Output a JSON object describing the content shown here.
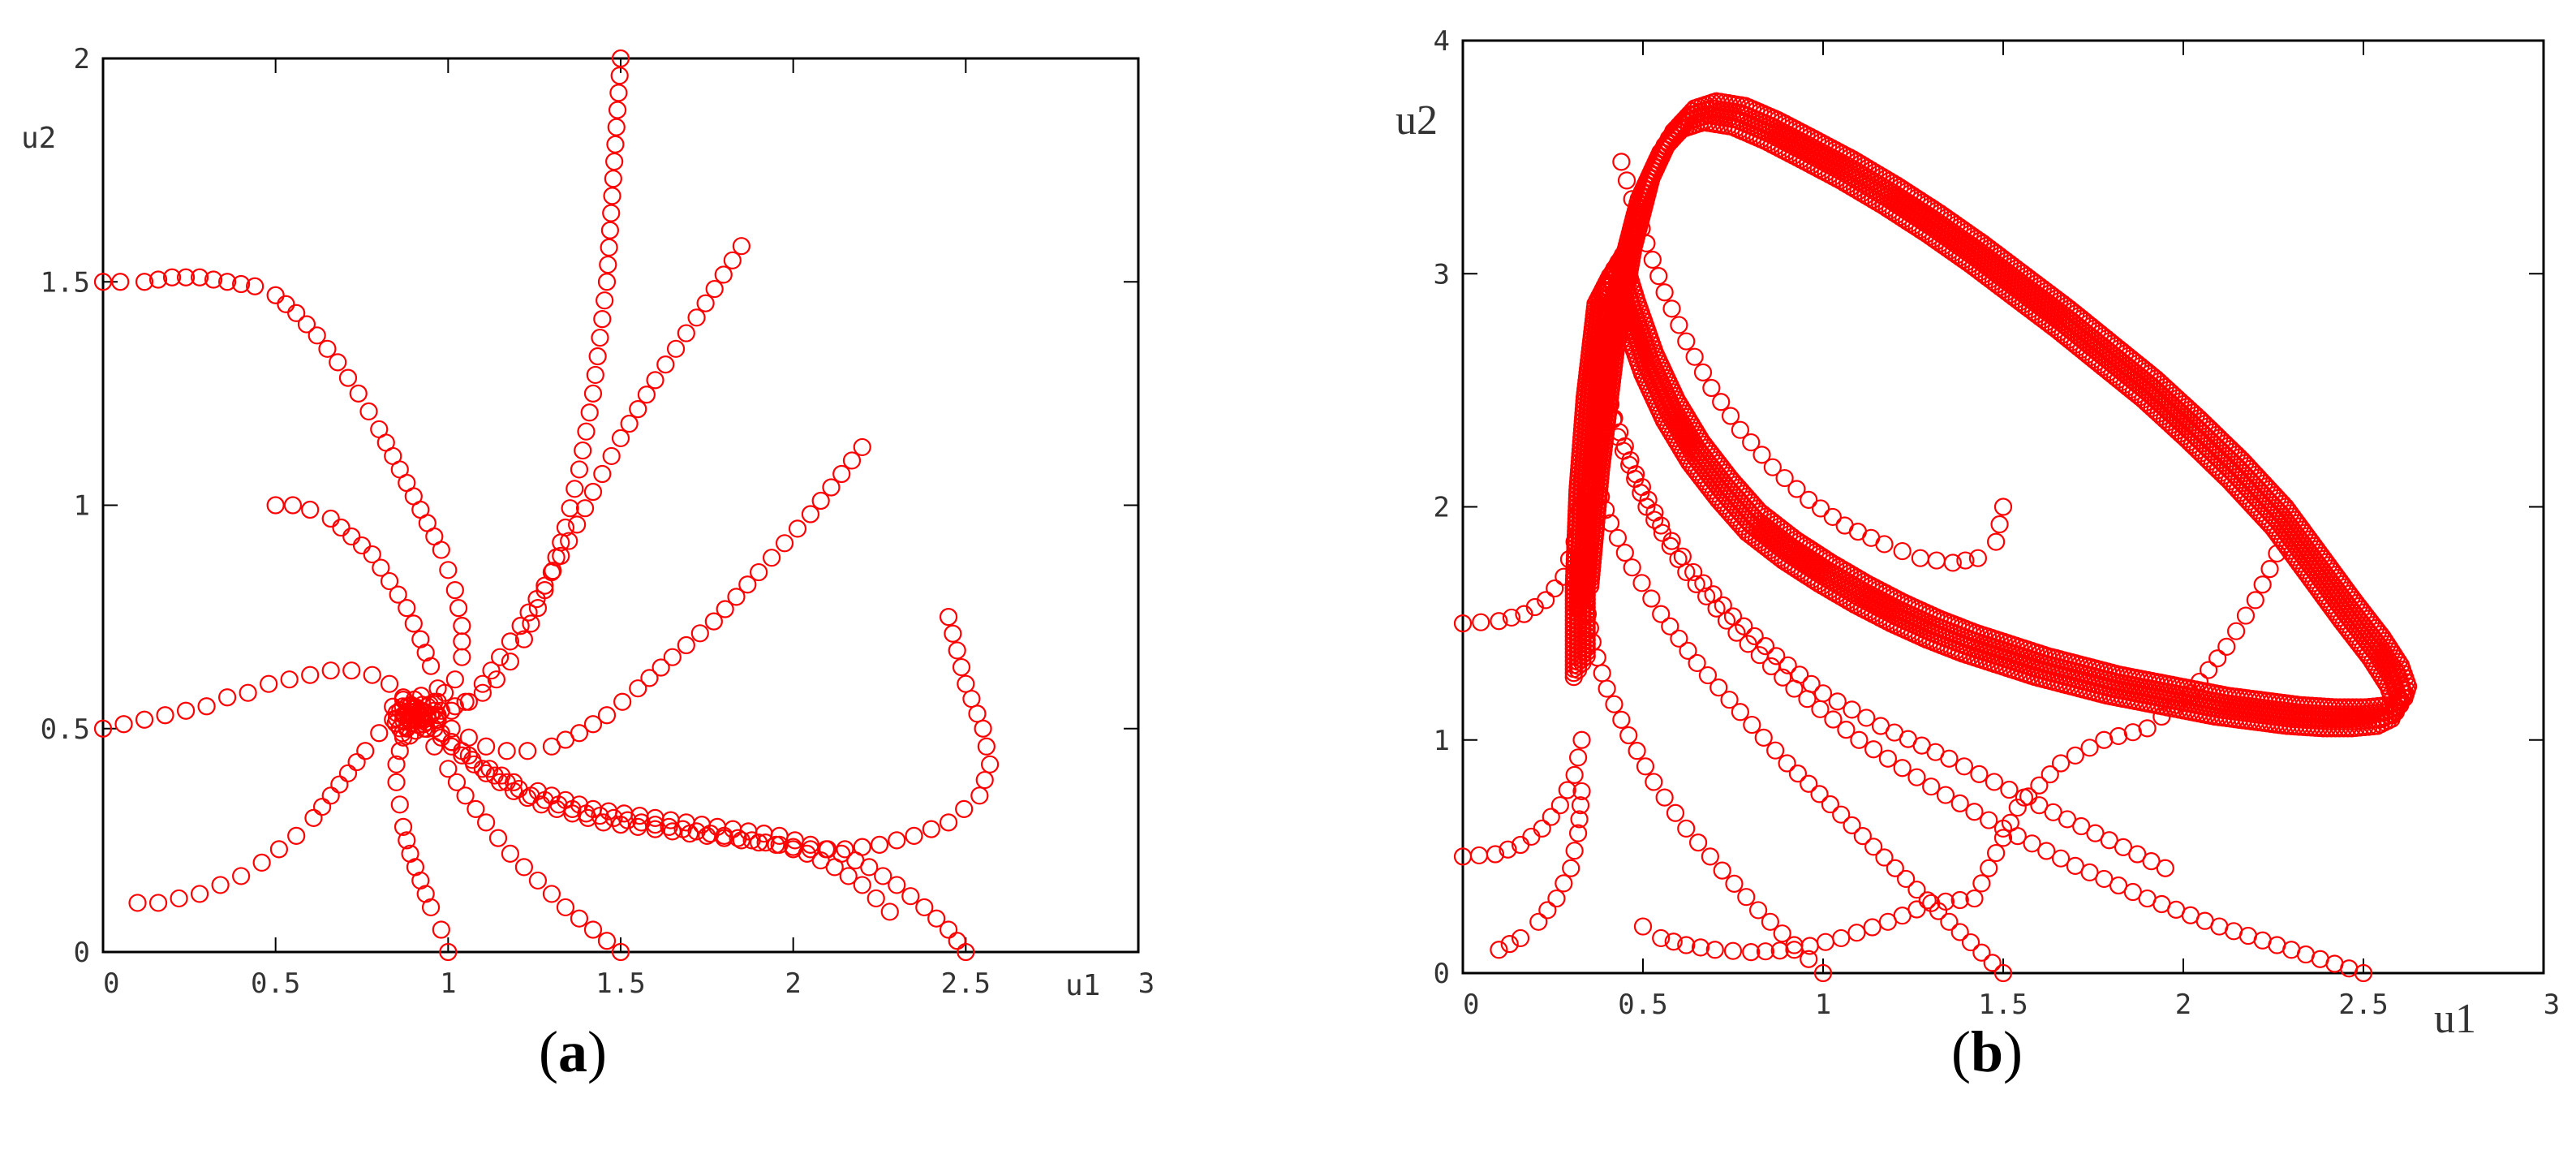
{
  "panels": {
    "a": {
      "caption_label": "a",
      "xlabel": "u1",
      "ylabel": "u2",
      "xlim": [
        0,
        3
      ],
      "ylim": [
        0,
        2
      ],
      "xticks": [
        "0",
        "0.5",
        "1",
        "1.5",
        "2",
        "2.5",
        "3"
      ],
      "yticks": [
        "0",
        "0.5",
        "1",
        "1.5",
        "2"
      ]
    },
    "b": {
      "caption_label": "b",
      "xlabel": "u1",
      "ylabel": "u2",
      "xlim": [
        0,
        3
      ],
      "ylim": [
        0,
        4
      ],
      "xticks": [
        "0",
        "0.5",
        "1",
        "1.5",
        "2",
        "2.5",
        "3"
      ],
      "yticks": [
        "0",
        "1",
        "2",
        "3",
        "4"
      ]
    }
  },
  "chart_data": [
    {
      "type": "scatter",
      "panel": "a",
      "xlabel": "u1",
      "ylabel": "u2",
      "xlim": [
        0,
        3
      ],
      "ylim": [
        0,
        2
      ],
      "marker": "open-circle",
      "color": "#ff0000",
      "equilibrium": [
        0.9,
        0.53
      ],
      "series": [
        {
          "x": [
            0,
            0.05,
            0.12,
            0.2,
            0.28,
            0.36,
            0.44,
            0.5,
            0.56,
            0.62,
            0.68,
            0.74,
            0.8,
            0.86,
            0.92,
            0.98,
            1.02,
            1.04,
            1.04,
            1.02,
            0.99,
            0.96,
            0.94,
            0.92,
            0.91,
            0.9
          ],
          "y": [
            1.5,
            1.5,
            1.5,
            1.51,
            1.51,
            1.5,
            1.49,
            1.47,
            1.43,
            1.38,
            1.32,
            1.25,
            1.17,
            1.08,
            0.99,
            0.9,
            0.81,
            0.73,
            0.66,
            0.61,
            0.58,
            0.56,
            0.55,
            0.54,
            0.53,
            0.53
          ]
        },
        {
          "x": [
            0.5,
            0.55,
            0.6,
            0.66,
            0.72,
            0.78,
            0.83,
            0.88,
            0.92,
            0.95,
            0.97,
            0.97,
            0.96,
            0.94,
            0.92,
            0.91,
            0.9
          ],
          "y": [
            1,
            1,
            0.99,
            0.97,
            0.93,
            0.89,
            0.83,
            0.77,
            0.7,
            0.64,
            0.59,
            0.56,
            0.54,
            0.53,
            0.53,
            0.53,
            0.53
          ]
        },
        {
          "x": [
            0,
            0.06,
            0.12,
            0.18,
            0.24,
            0.3,
            0.36,
            0.42,
            0.48,
            0.54,
            0.6,
            0.66,
            0.72,
            0.78,
            0.83,
            0.87,
            0.89,
            0.9
          ],
          "y": [
            0.5,
            0.51,
            0.52,
            0.53,
            0.54,
            0.55,
            0.57,
            0.58,
            0.6,
            0.61,
            0.62,
            0.63,
            0.63,
            0.62,
            0.6,
            0.57,
            0.55,
            0.53
          ]
        },
        {
          "x": [
            0.1,
            0.16,
            0.22,
            0.28,
            0.34,
            0.4,
            0.46,
            0.51,
            0.56,
            0.61,
            0.66,
            0.71,
            0.76,
            0.8,
            0.84,
            0.87,
            0.89,
            0.9
          ],
          "y": [
            0.11,
            0.11,
            0.12,
            0.13,
            0.15,
            0.17,
            0.2,
            0.23,
            0.26,
            0.3,
            0.35,
            0.4,
            0.45,
            0.49,
            0.52,
            0.53,
            0.53,
            0.53
          ]
        },
        {
          "x": [
            1,
            0.98,
            0.95,
            0.92,
            0.89,
            0.87,
            0.86,
            0.85,
            0.85,
            0.86,
            0.87,
            0.88,
            0.89,
            0.9
          ],
          "y": [
            0,
            0.05,
            0.1,
            0.16,
            0.22,
            0.28,
            0.33,
            0.38,
            0.42,
            0.45,
            0.48,
            0.5,
            0.52,
            0.53
          ]
        },
        {
          "x": [
            1.5,
            1.42,
            1.34,
            1.26,
            1.18,
            1.11,
            1.05,
            1,
            0.96,
            0.93,
            0.91,
            0.9
          ],
          "y": [
            0,
            0.05,
            0.1,
            0.16,
            0.22,
            0.29,
            0.35,
            0.41,
            0.46,
            0.5,
            0.52,
            0.53
          ]
        },
        {
          "x": [
            1.85,
            1.72,
            1.6,
            1.5,
            1.42,
            1.35,
            1.28,
            1.21,
            1.15,
            1.1,
            1.05,
            1.01,
            0.97,
            0.94,
            0.92,
            0.9
          ],
          "y": [
            1.58,
            1.42,
            1.28,
            1.15,
            1.03,
            0.92,
            0.82,
            0.73,
            0.66,
            0.6,
            0.56,
            0.54,
            0.53,
            0.53,
            0.53,
            0.53
          ]
        },
        {
          "x": [
            1.5,
            1.46,
            1.42,
            1.38,
            1.34,
            1.3,
            1.26,
            1.22,
            1.18,
            1.14,
            1.1,
            1.06,
            1.02,
            0.98,
            0.95,
            0.92,
            0.9
          ],
          "y": [
            2,
            1.5,
            1.25,
            1.08,
            0.95,
            0.85,
            0.77,
            0.7,
            0.65,
            0.61,
            0.58,
            0.56,
            0.55,
            0.54,
            0.53,
            0.53,
            0.53
          ]
        },
        {
          "x": [
            2.2,
            2.05,
            1.9,
            1.77,
            1.65,
            1.55,
            1.46,
            1.38,
            1.3,
            1.23,
            1.17,
            1.11,
            1.06,
            1.01,
            0.97,
            0.93,
            0.9
          ],
          "y": [
            1.13,
            0.98,
            0.85,
            0.74,
            0.66,
            0.59,
            0.53,
            0.49,
            0.46,
            0.45,
            0.45,
            0.46,
            0.48,
            0.5,
            0.52,
            0.53,
            0.53
          ]
        },
        {
          "x": [
            2.5,
            2.45,
            2.38,
            2.3,
            2.22,
            2.14,
            2.05,
            1.96,
            1.87,
            1.78,
            1.69,
            1.6,
            1.51,
            1.42,
            1.34,
            1.26,
            1.19,
            1.12,
            1.06,
            1.01,
            0.96,
            0.92,
            0.9
          ],
          "y": [
            0,
            0.05,
            0.1,
            0.15,
            0.19,
            0.22,
            0.24,
            0.26,
            0.27,
            0.28,
            0.29,
            0.3,
            0.31,
            0.32,
            0.34,
            0.36,
            0.38,
            0.41,
            0.44,
            0.47,
            0.5,
            0.52,
            0.53
          ]
        },
        {
          "x": [
            2.45,
            2.5,
            2.55,
            2.57,
            2.54,
            2.45,
            2.35,
            2.25,
            2.15,
            2.05,
            1.95,
            1.85,
            1.75,
            1.65,
            1.55,
            1.45,
            1.36,
            1.27,
            1.19,
            1.11,
            1.04,
            0.98,
            0.93,
            0.9
          ],
          "y": [
            0.75,
            0.6,
            0.5,
            0.42,
            0.35,
            0.29,
            0.26,
            0.24,
            0.23,
            0.23,
            0.24,
            0.25,
            0.26,
            0.27,
            0.28,
            0.29,
            0.31,
            0.33,
            0.36,
            0.4,
            0.44,
            0.48,
            0.51,
            0.53
          ]
        },
        {
          "x": [
            2.28,
            2.2,
            2.12,
            2.04,
            1.96,
            1.88,
            1.8,
            1.72,
            1.64,
            1.56,
            1.48,
            1.4,
            1.32,
            1.24,
            1.17,
            1.1,
            1.04,
            0.98,
            0.93,
            0.9
          ],
          "y": [
            0.09,
            0.15,
            0.19,
            0.22,
            0.24,
            0.25,
            0.26,
            0.27,
            0.28,
            0.29,
            0.3,
            0.31,
            0.33,
            0.35,
            0.38,
            0.41,
            0.45,
            0.49,
            0.52,
            0.53
          ]
        }
      ]
    },
    {
      "type": "scatter",
      "panel": "b",
      "xlabel": "u1",
      "ylabel": "u2",
      "xlim": [
        0,
        3
      ],
      "ylim": [
        0,
        4
      ],
      "marker": "open-circle",
      "color": "#ff0000",
      "limit_cycle": {
        "x": [
          0.33,
          0.36,
          0.4,
          0.45,
          0.5,
          0.56,
          0.62,
          0.68,
          0.76,
          0.85,
          0.95,
          1.06,
          1.18,
          1.3,
          1.42,
          1.54,
          1.66,
          1.78,
          1.9,
          2.02,
          2.14,
          2.26,
          2.36,
          2.45,
          2.53,
          2.58,
          2.6,
          2.59,
          2.55,
          2.48,
          2.4,
          2.3,
          2.2,
          2.1,
          2,
          1.9,
          1.8,
          1.7,
          1.6,
          1.5,
          1.4,
          1.3,
          1.2,
          1.1,
          1,
          0.9,
          0.8,
          0.72,
          0.64,
          0.57,
          0.51,
          0.46,
          0.42,
          0.38,
          0.35,
          0.33,
          0.32,
          0.32
        ],
        "y": [
          1.6,
          2.1,
          2.6,
          3.05,
          3.35,
          3.55,
          3.65,
          3.68,
          3.66,
          3.6,
          3.52,
          3.43,
          3.32,
          3.2,
          3.07,
          2.93,
          2.79,
          2.64,
          2.49,
          2.32,
          2.14,
          1.94,
          1.73,
          1.54,
          1.38,
          1.26,
          1.17,
          1.12,
          1.09,
          1.08,
          1.08,
          1.09,
          1.11,
          1.13,
          1.16,
          1.19,
          1.22,
          1.26,
          1.3,
          1.35,
          1.4,
          1.46,
          1.53,
          1.61,
          1.7,
          1.8,
          1.92,
          2.06,
          2.22,
          2.4,
          2.6,
          2.82,
          3.02,
          2.9,
          2.5,
          2.1,
          1.7,
          1.3
        ]
      },
      "series": [
        {
          "x": [
            1.5,
            1.48,
            1.43,
            1.36,
            1.27,
            1.17,
            1.06,
            0.96,
            0.86,
            0.77,
            0.69,
            0.62,
            0.56,
            0.51,
            0.47,
            0.44
          ],
          "y": [
            2,
            1.85,
            1.78,
            1.76,
            1.78,
            1.84,
            1.92,
            2.03,
            2.17,
            2.33,
            2.51,
            2.71,
            2.92,
            3.13,
            3.32,
            3.48
          ]
        },
        {
          "x": [
            0,
            0.1,
            0.17,
            0.23,
            0.28,
            0.31,
            0.33
          ],
          "y": [
            1.5,
            1.51,
            1.54,
            1.6,
            1.7,
            1.85,
            2.05
          ]
        },
        {
          "x": [
            0,
            0.09,
            0.16,
            0.22,
            0.27,
            0.31,
            0.33
          ],
          "y": [
            0.5,
            0.51,
            0.55,
            0.62,
            0.72,
            0.85,
            1
          ]
        },
        {
          "x": [
            0.1,
            0.16,
            0.21,
            0.26,
            0.3,
            0.32,
            0.33
          ],
          "y": [
            0.1,
            0.15,
            0.22,
            0.32,
            0.45,
            0.6,
            0.78
          ]
        },
        {
          "x": [
            1,
            0.92,
            0.82,
            0.72,
            0.62,
            0.53,
            0.46,
            0.4,
            0.36,
            0.34
          ],
          "y": [
            0,
            0.12,
            0.27,
            0.44,
            0.62,
            0.82,
            1.02,
            1.22,
            1.42,
            1.6
          ]
        },
        {
          "x": [
            1.5,
            1.35,
            1.2,
            1.05,
            0.9,
            0.77,
            0.65,
            0.55,
            0.47,
            0.41,
            0.37
          ],
          "y": [
            0,
            0.22,
            0.45,
            0.68,
            0.9,
            1.12,
            1.33,
            1.54,
            1.74,
            1.93,
            2.1
          ]
        },
        {
          "x": [
            2.5,
            2.3,
            2.1,
            1.9,
            1.7,
            1.5,
            1.3,
            1.1,
            0.92,
            0.76,
            0.62,
            0.51,
            0.43,
            0.38
          ],
          "y": [
            0,
            0.1,
            0.2,
            0.32,
            0.46,
            0.62,
            0.8,
            1,
            1.22,
            1.46,
            1.72,
            2,
            2.3,
            2.6
          ]
        },
        {
          "x": [
            1.95,
            1.6,
            1.35,
            1.16,
            1,
            0.87,
            0.75,
            0.64,
            0.55,
            0.48,
            0.42,
            0.38
          ],
          "y": [
            0.45,
            0.72,
            0.92,
            1.06,
            1.2,
            1.36,
            1.53,
            1.72,
            1.92,
            2.14,
            2.38,
            2.62
          ]
        },
        {
          "x": [
            0.5,
            0.55,
            0.62,
            0.7,
            0.8,
            0.92,
            1.05,
            1.18,
            1.3,
            1.42,
            1.54,
            1.66,
            1.78,
            1.9,
            2.02,
            2.12,
            2.2,
            2.26
          ],
          "y": [
            0.2,
            0.15,
            0.12,
            0.1,
            0.09,
            0.1,
            0.15,
            0.22,
            0.3,
            0.32,
            0.71,
            0.9,
            1,
            1.05,
            1.2,
            1.4,
            1.6,
            1.8
          ]
        }
      ]
    }
  ]
}
